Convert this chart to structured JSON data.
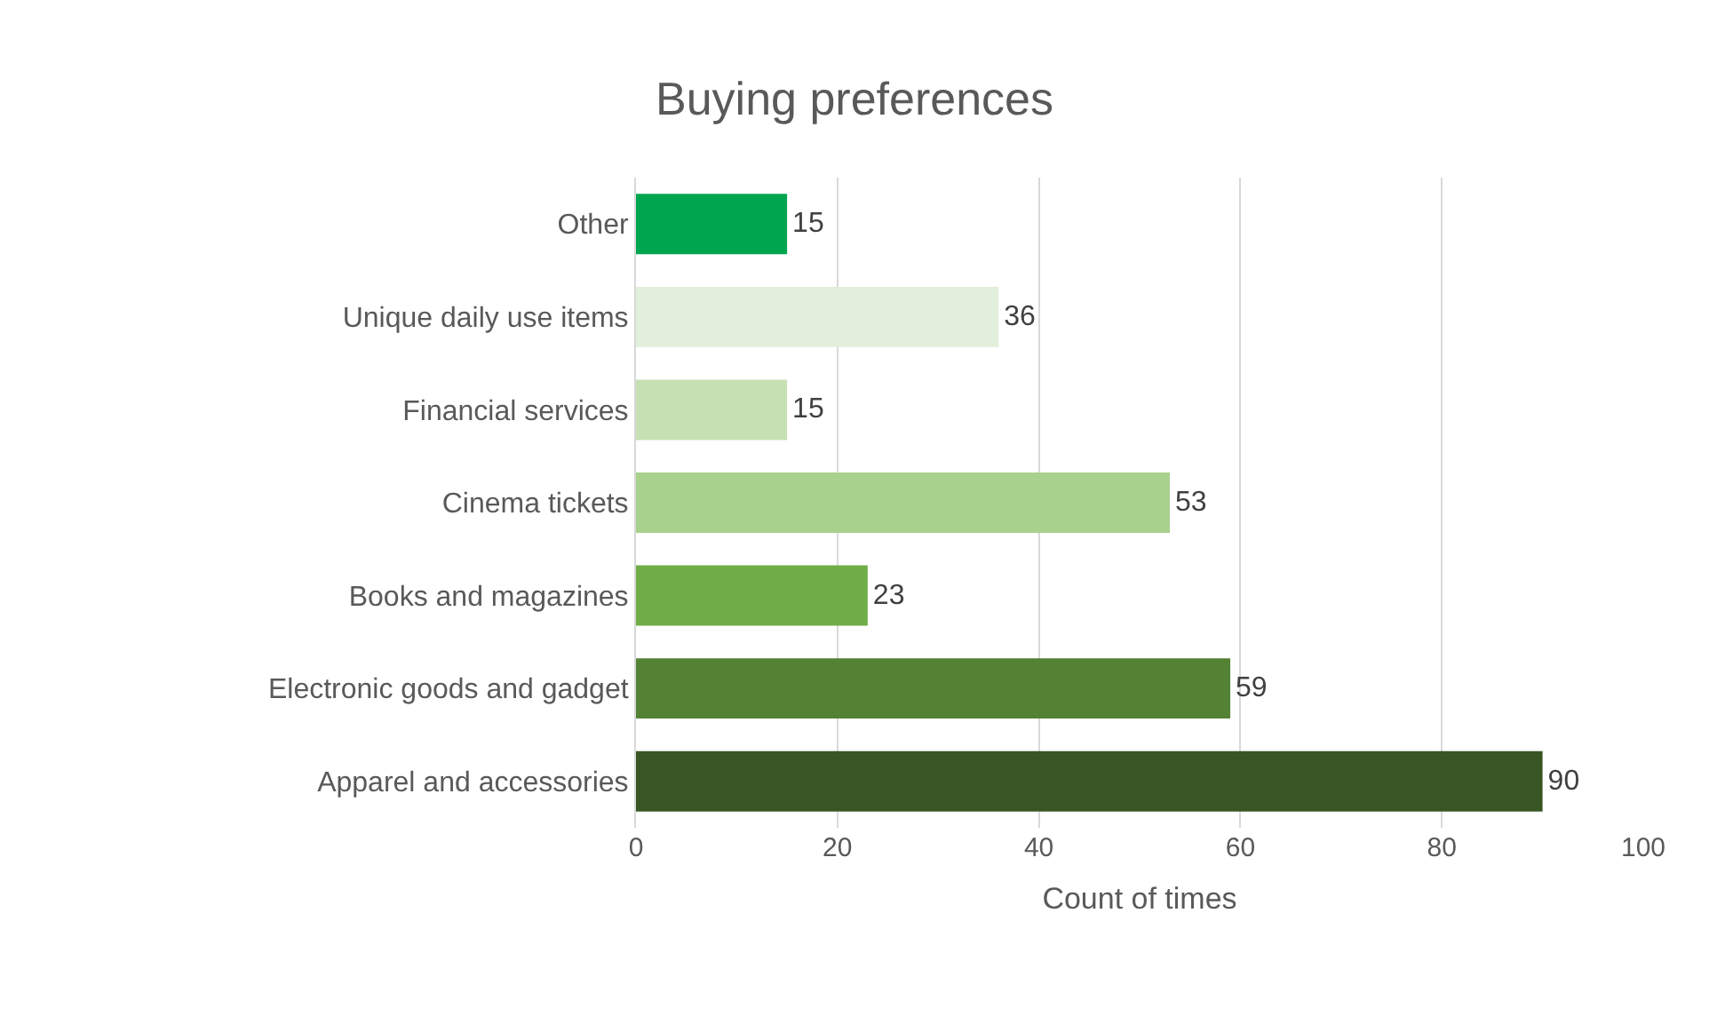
{
  "chart_data": {
    "type": "bar",
    "orientation": "horizontal",
    "title": "Buying preferences",
    "xlabel": "Count of times",
    "categories": [
      "Other",
      "Unique daily use items",
      "Financial services",
      "Cinema tickets",
      "Books and magazines",
      "Electronic goods and gadget",
      "Apparel and accessories"
    ],
    "values": [
      15,
      36,
      15,
      53,
      23,
      59,
      90
    ],
    "colors": [
      "#00a550",
      "#e2efda",
      "#c6e0b4",
      "#a9d18e",
      "#70ad47",
      "#548235",
      "#375623"
    ],
    "xlim": [
      0,
      100
    ],
    "xticks": [
      0,
      20,
      40,
      60,
      80,
      100
    ],
    "grid": "x",
    "data_labels": true,
    "legend": false
  }
}
